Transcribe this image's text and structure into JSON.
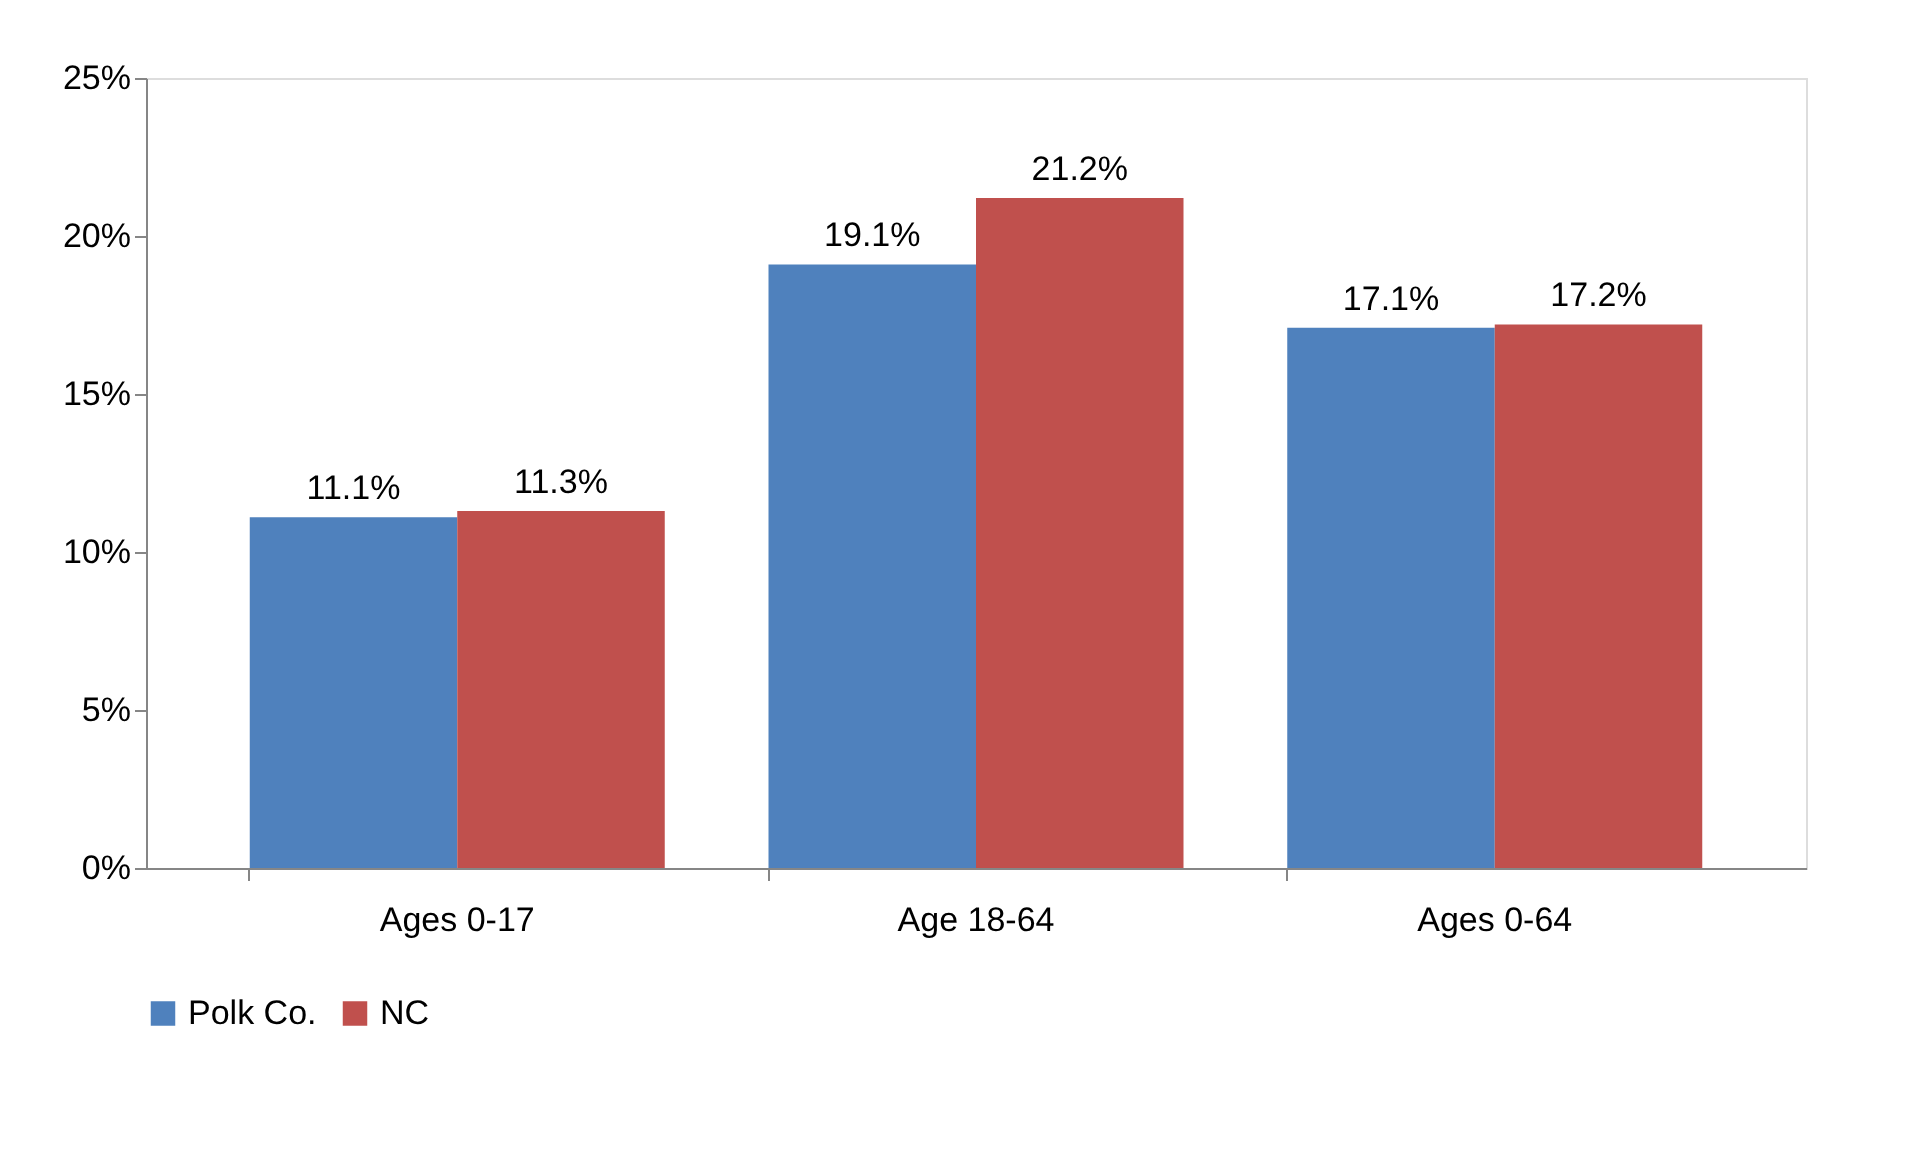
{
  "chart_data": {
    "type": "bar",
    "categories": [
      "Ages 0-17",
      "Age 18-64",
      "Ages 0-64"
    ],
    "series": [
      {
        "name": "Polk Co.",
        "color": "#4f81bd",
        "values": [
          11.1,
          19.1,
          17.1
        ],
        "value_labels": [
          "11.1%",
          "19.1%",
          "17.1%"
        ]
      },
      {
        "name": "NC",
        "color": "#c0504d",
        "values": [
          11.3,
          21.2,
          17.2
        ],
        "value_labels": [
          "11.3%",
          "21.2%",
          "17.2%"
        ]
      }
    ],
    "ylim": [
      0,
      25
    ],
    "yticks": [
      {
        "value": 0,
        "label": "0%"
      },
      {
        "value": 5,
        "label": "5%"
      },
      {
        "value": 10,
        "label": "10%"
      },
      {
        "value": 15,
        "label": "15%"
      },
      {
        "value": 20,
        "label": "20%"
      },
      {
        "value": 25,
        "label": "25%"
      }
    ],
    "grid": false,
    "legend": "bottom"
  }
}
